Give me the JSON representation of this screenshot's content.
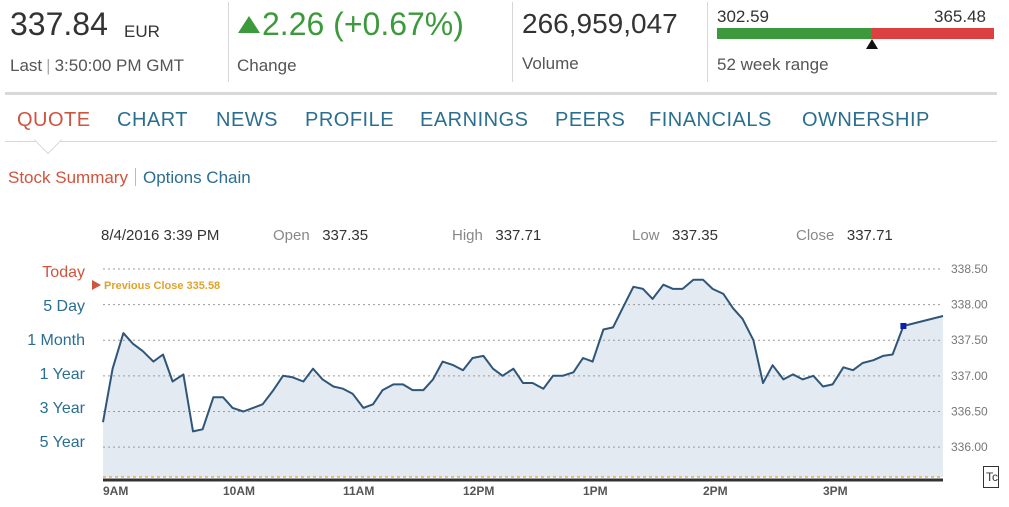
{
  "quote": {
    "last_price": "337.84",
    "currency": "EUR",
    "last_label": "Last",
    "last_time": "3:50:00 PM GMT",
    "change": "2.26 (+0.67%)",
    "change_label": "Change",
    "volume": "266,959,047",
    "volume_label": "Volume",
    "range_low": "302.59",
    "range_high": "365.48",
    "range_label": "52 week range",
    "range_position": 0.56,
    "colors": {
      "up": "#3c9a3c",
      "down": "#dd4040",
      "link": "#2a6f8f",
      "active": "#d0543d"
    }
  },
  "tabs": [
    "QUOTE",
    "CHART",
    "NEWS",
    "PROFILE",
    "EARNINGS",
    "PEERS",
    "FINANCIALS",
    "OWNERSHIP"
  ],
  "active_tab": "QUOTE",
  "subnav": {
    "summary": "Stock Summary",
    "options": "Options Chain"
  },
  "chart_info": {
    "datetime": "8/4/2016 3:39 PM",
    "open_label": "Open",
    "open": "337.35",
    "high_label": "High",
    "high": "337.71",
    "low_label": "Low",
    "low": "337.35",
    "close_label": "Close",
    "close": "337.71"
  },
  "ranges": [
    "Today",
    "5 Day",
    "1 Month",
    "1 Year",
    "3 Year",
    "5 Year"
  ],
  "active_range": "Today",
  "corner_button": "Tc",
  "chart_data": {
    "type": "area",
    "title": "",
    "xlabel": "",
    "ylabel": "",
    "ylim": [
      335.58,
      338.5
    ],
    "yticks": [
      "338.50",
      "338.00",
      "337.50",
      "337.00",
      "336.50",
      "336.00"
    ],
    "ytick_values": [
      338.5,
      338.0,
      337.5,
      337.0,
      336.5,
      336.0
    ],
    "xticks": [
      "9AM",
      "10AM",
      "11AM",
      "12PM",
      "1PM",
      "2PM",
      "3PM"
    ],
    "xtick_hours": [
      9,
      10,
      11,
      12,
      13,
      14,
      15
    ],
    "xlim": [
      9.0,
      16.0
    ],
    "previous_close_label": "Previous Close 335.58",
    "previous_close": 335.58,
    "grid": true,
    "series": [
      {
        "x": [
          9.0,
          9.08,
          9.17,
          9.25,
          9.33,
          9.42,
          9.5,
          9.58,
          9.67,
          9.75,
          9.83,
          9.92,
          10.0,
          10.08,
          10.17,
          10.25,
          10.33,
          10.42,
          10.5,
          10.58,
          10.67,
          10.75,
          10.83,
          10.92,
          11.0,
          11.08,
          11.17,
          11.25,
          11.33,
          11.42,
          11.5,
          11.58,
          11.67,
          11.75,
          11.83,
          11.92,
          12.0,
          12.08,
          12.17,
          12.25,
          12.33,
          12.42,
          12.5,
          12.58,
          12.67,
          12.75,
          12.83,
          12.92,
          13.0,
          13.08,
          13.17,
          13.25,
          13.33,
          13.42,
          13.5,
          13.58,
          13.67,
          13.75,
          13.83,
          13.92,
          14.0,
          14.08,
          14.17,
          14.25,
          14.33,
          14.42,
          14.5,
          14.58,
          14.67,
          14.75,
          14.83,
          14.92,
          15.0,
          15.08,
          15.17,
          15.25,
          15.33,
          15.42,
          15.5,
          15.58,
          15.67
        ],
        "y": [
          336.35,
          337.1,
          337.6,
          337.45,
          337.35,
          337.2,
          337.3,
          336.92,
          337.02,
          336.22,
          336.25,
          336.7,
          336.7,
          336.55,
          336.5,
          336.55,
          336.6,
          336.8,
          337.0,
          336.98,
          336.92,
          337.1,
          336.95,
          336.85,
          336.82,
          336.75,
          336.55,
          336.6,
          336.8,
          336.88,
          336.88,
          336.8,
          336.8,
          336.95,
          337.2,
          337.15,
          337.08,
          337.25,
          337.28,
          337.1,
          337.0,
          337.1,
          336.9,
          336.9,
          336.82,
          337.0,
          337.0,
          337.05,
          337.25,
          337.2,
          337.65,
          337.68,
          337.95,
          338.25,
          338.22,
          338.08,
          338.28,
          338.22,
          338.22,
          338.35,
          338.35,
          338.22,
          338.15,
          337.95,
          337.8,
          337.5,
          336.9,
          337.15,
          336.95,
          337.02,
          336.95,
          337.0,
          336.85,
          336.88,
          337.12,
          337.08,
          337.18,
          337.22,
          337.28,
          337.3,
          337.7
        ]
      }
    ],
    "last_point": {
      "x": 15.67,
      "y": 337.7
    },
    "end_y": 337.84
  }
}
